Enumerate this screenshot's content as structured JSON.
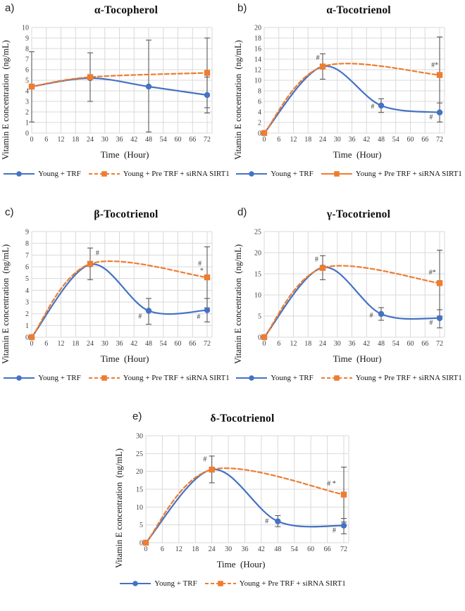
{
  "colors": {
    "series1": "#4472C4",
    "series2": "#ED7D31",
    "grid": "#D9D9D9",
    "error_bar": "#595959",
    "annotation": "#111111"
  },
  "legend_labels": {
    "series1": "Young + TRF",
    "series2": "Young + Pre TRF + siRNA SIRT1"
  },
  "chart_data": [
    {
      "type": "line",
      "letter": "a)",
      "title": "α-Tocopherol",
      "xlabel": "Time  (Hour)",
      "ylabel": "Vitamin E concentration  (ng/mL)",
      "xticks": [
        0,
        6,
        12,
        18,
        24,
        30,
        36,
        42,
        48,
        54,
        60,
        66,
        72
      ],
      "xlim": [
        0,
        72
      ],
      "ylim": [
        0,
        10
      ],
      "ystep": 1,
      "legend2_dash": true,
      "series": [
        {
          "name": "Young + TRF",
          "color": "#4472C4",
          "dashed": false,
          "marker": "circle",
          "points": [
            [
              0,
              4.4
            ],
            [
              24,
              5.2
            ],
            [
              48,
              4.4
            ],
            [
              72,
              3.6
            ]
          ],
          "error_bars": [
            {
              "x": 0,
              "lo": 1.05,
              "hi": 7.7
            },
            {
              "x": 48,
              "lo": 0.1,
              "hi": 8.8
            },
            {
              "x": 72,
              "lo": 1.9,
              "hi": 5.3
            }
          ]
        },
        {
          "name": "Young + Pre TRF + siRNA SIRT1",
          "color": "#ED7D31",
          "dashed": true,
          "marker": "square",
          "points": [
            [
              0,
              4.4
            ],
            [
              24,
              5.3
            ],
            [
              72,
              5.7
            ]
          ],
          "error_bars": [
            {
              "x": 24,
              "lo": 3.0,
              "hi": 7.6
            },
            {
              "x": 72,
              "lo": 2.4,
              "hi": 9.0
            }
          ]
        }
      ],
      "annotations": []
    },
    {
      "type": "line",
      "letter": "b)",
      "title": "α-Tocotrienol",
      "xlabel": "Time  (Hour)",
      "ylabel": "Vitamin E concentration  (ng/mL)",
      "xticks": [
        0,
        6,
        12,
        18,
        24,
        30,
        36,
        42,
        48,
        54,
        60,
        66,
        72
      ],
      "xlim": [
        0,
        72
      ],
      "ylim": [
        0,
        20
      ],
      "ystep": 2,
      "legend2_dash": false,
      "series": [
        {
          "name": "Young + TRF",
          "color": "#4472C4",
          "dashed": false,
          "marker": "circle",
          "points": [
            [
              0,
              0
            ],
            [
              24,
              12.6
            ],
            [
              48,
              5.2
            ],
            [
              72,
              3.9
            ]
          ],
          "error_bars": [
            {
              "x": 48,
              "lo": 3.9,
              "hi": 6.5
            },
            {
              "x": 72,
              "lo": 2.1,
              "hi": 5.7
            }
          ]
        },
        {
          "name": "Young + Pre TRF + siRNA SIRT1",
          "color": "#ED7D31",
          "dashed": true,
          "marker": "square",
          "points": [
            [
              0,
              0
            ],
            [
              24,
              12.6
            ],
            [
              72,
              11.0
            ]
          ],
          "error_bars": [
            {
              "x": 24,
              "lo": 10.2,
              "hi": 15.0
            },
            {
              "x": 72,
              "lo": 3.8,
              "hi": 18.2
            }
          ]
        }
      ],
      "annotations": [
        {
          "x": 22,
          "y": 13.9,
          "text": "#"
        },
        {
          "x": 44.5,
          "y": 4.6,
          "text": "#"
        },
        {
          "x": 70,
          "y": 12.5,
          "text": "#*"
        },
        {
          "x": 68.5,
          "y": 2.6,
          "text": "#"
        }
      ]
    },
    {
      "type": "line",
      "letter": "c)",
      "title": "β-Tocotrienol",
      "xlabel": "Time  (Hour)",
      "ylabel": "Vitamin E concentration  (ng/mL)",
      "xticks": [
        0,
        6,
        12,
        18,
        24,
        30,
        36,
        42,
        48,
        54,
        60,
        66,
        72
      ],
      "xlim": [
        0,
        72
      ],
      "ylim": [
        0,
        9
      ],
      "ystep": 1,
      "legend2_dash": true,
      "series": [
        {
          "name": "Young + TRF",
          "color": "#4472C4",
          "dashed": false,
          "marker": "circle",
          "points": [
            [
              0,
              0
            ],
            [
              24,
              6.2
            ],
            [
              48,
              2.25
            ],
            [
              72,
              2.3
            ]
          ],
          "error_bars": [
            {
              "x": 48,
              "lo": 1.1,
              "hi": 3.3
            },
            {
              "x": 72,
              "lo": 1.3,
              "hi": 3.3
            }
          ]
        },
        {
          "name": "Young + Pre TRF + siRNA SIRT1",
          "color": "#ED7D31",
          "dashed": true,
          "marker": "square",
          "points": [
            [
              0,
              0
            ],
            [
              24,
              6.25
            ],
            [
              72,
              5.1
            ]
          ],
          "error_bars": [
            {
              "x": 24,
              "lo": 4.9,
              "hi": 7.6
            },
            {
              "x": 72,
              "lo": 2.5,
              "hi": 7.7
            }
          ]
        }
      ],
      "annotations": [
        {
          "x": 27,
          "y": 7.0,
          "text": "#"
        },
        {
          "x": 44.5,
          "y": 1.6,
          "text": "#"
        },
        {
          "x": 69,
          "y": 6.1,
          "text": "#"
        },
        {
          "x": 69.8,
          "y": 5.5,
          "text": "*"
        },
        {
          "x": 68.5,
          "y": 1.55,
          "text": "#"
        }
      ]
    },
    {
      "type": "line",
      "letter": "d)",
      "title": "γ-Tocotrienol",
      "xlabel": "Time  (Hour)",
      "ylabel": "Vitamin E concentration  (ng/mL)",
      "xticks": [
        0,
        6,
        12,
        18,
        24,
        30,
        36,
        42,
        48,
        54,
        60,
        66,
        72
      ],
      "xlim": [
        0,
        72
      ],
      "ylim": [
        0,
        25
      ],
      "ystep": 5,
      "legend2_dash": true,
      "series": [
        {
          "name": "Young + TRF",
          "color": "#4472C4",
          "dashed": false,
          "marker": "circle",
          "points": [
            [
              0,
              0
            ],
            [
              24,
              16.5
            ],
            [
              48,
              5.5
            ],
            [
              72,
              4.5
            ]
          ],
          "error_bars": [
            {
              "x": 48,
              "lo": 4.0,
              "hi": 7.0
            },
            {
              "x": 72,
              "lo": 2.2,
              "hi": 6.5
            }
          ]
        },
        {
          "name": "Young + Pre TRF + siRNA SIRT1",
          "color": "#ED7D31",
          "dashed": true,
          "marker": "square",
          "points": [
            [
              0,
              0
            ],
            [
              24,
              16.4
            ],
            [
              72,
              12.8
            ]
          ],
          "error_bars": [
            {
              "x": 24,
              "lo": 13.6,
              "hi": 19.3
            },
            {
              "x": 72,
              "lo": 5.0,
              "hi": 20.6
            }
          ]
        }
      ],
      "annotations": [
        {
          "x": 21.5,
          "y": 17.9,
          "text": "#"
        },
        {
          "x": 44,
          "y": 4.7,
          "text": "#"
        },
        {
          "x": 69,
          "y": 14.8,
          "text": "#*"
        },
        {
          "x": 68.5,
          "y": 2.9,
          "text": "#"
        }
      ]
    },
    {
      "type": "line",
      "letter": "e)",
      "title": "δ-Tocotrienol",
      "xlabel": "Time  (Hour)",
      "ylabel": "Vitamin E concentration  (ng/mL)",
      "xticks": [
        0,
        6,
        12,
        18,
        24,
        30,
        36,
        42,
        48,
        54,
        60,
        66,
        72
      ],
      "xlim": [
        0,
        72
      ],
      "ylim": [
        0,
        30
      ],
      "ystep": 5,
      "legend2_dash": true,
      "series": [
        {
          "name": "Young + TRF",
          "color": "#4472C4",
          "dashed": false,
          "marker": "circle",
          "points": [
            [
              0,
              0
            ],
            [
              24,
              20.5
            ],
            [
              48,
              6.0
            ],
            [
              72,
              4.8
            ]
          ],
          "error_bars": [
            {
              "x": 48,
              "lo": 4.5,
              "hi": 7.6
            },
            {
              "x": 72,
              "lo": 2.5,
              "hi": 6.8
            }
          ]
        },
        {
          "name": "Young + Pre TRF + siRNA SIRT1",
          "color": "#ED7D31",
          "dashed": true,
          "marker": "square",
          "points": [
            [
              0,
              0
            ],
            [
              24,
              20.5
            ],
            [
              72,
              13.5
            ]
          ],
          "error_bars": [
            {
              "x": 24,
              "lo": 16.8,
              "hi": 24.3
            },
            {
              "x": 72,
              "lo": 5.8,
              "hi": 21.2
            }
          ]
        }
      ],
      "annotations": [
        {
          "x": 21.5,
          "y": 22.8,
          "text": "#"
        },
        {
          "x": 44,
          "y": 5.4,
          "text": "#"
        },
        {
          "x": 67.5,
          "y": 16.0,
          "text": "# *"
        },
        {
          "x": 68.5,
          "y": 2.9,
          "text": "#"
        }
      ]
    }
  ]
}
